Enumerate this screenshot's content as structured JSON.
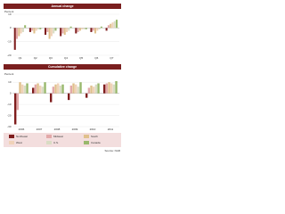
{
  "chart_data": [
    {
      "type": "bar",
      "title": "Annual change",
      "ylabel": "Percent",
      "categories": [
        "Q1",
        "Q2",
        "Q3",
        "Q4",
        "Q5",
        "Q6",
        "Q7"
      ],
      "series": [
        {
          "name": "Northeast",
          "color": "#7f1d1d",
          "values": [
            -16,
            -3,
            -5,
            -6,
            -4,
            -3,
            -2
          ]
        },
        {
          "name": "Midwest",
          "color": "#e3a9a9",
          "values": [
            -8,
            -2,
            -3,
            -4,
            -3,
            -2,
            2
          ]
        },
        {
          "name": "South",
          "color": "#e0c08c",
          "values": [
            -6,
            -4,
            -8,
            -5,
            -2,
            -4,
            3
          ]
        },
        {
          "name": "West",
          "color": "#f0d2b8",
          "values": [
            -4,
            -2,
            -6,
            -3,
            -1,
            -2,
            4
          ]
        },
        {
          "name": "U.S.",
          "color": "#d9dcc4",
          "values": [
            -3,
            -1,
            -4,
            -2,
            -1,
            -1,
            5
          ]
        },
        {
          "name": "Canada",
          "color": "#98b86c",
          "values": [
            2,
            -1,
            -2,
            1,
            -1,
            1,
            6
          ]
        }
      ],
      "ylim": [
        -20,
        10
      ],
      "yticks": [
        -20,
        -10,
        0,
        10
      ],
      "grid": true
    },
    {
      "type": "bar",
      "title": "Cumulative change",
      "ylabel": "Percent",
      "categories": [
        "2006",
        "2007",
        "2008",
        "2009",
        "2010",
        "2011"
      ],
      "series": [
        {
          "color": "#7f1d1d",
          "values": [
            -28,
            5,
            -8,
            -6,
            -4,
            8
          ]
        },
        {
          "color": "#e3a9a9",
          "values": [
            -15,
            8,
            6,
            7,
            5,
            9
          ]
        },
        {
          "color": "#e0c08c",
          "values": [
            10,
            9,
            8,
            9,
            7,
            10
          ]
        },
        {
          "color": "#f0d2b8",
          "values": [
            8,
            7,
            9,
            8,
            6,
            9
          ]
        },
        {
          "color": "#d9dcc4",
          "values": [
            7,
            6,
            7,
            6,
            8,
            8
          ]
        },
        {
          "color": "#98b86c",
          "values": [
            9,
            10,
            8,
            10,
            9,
            11
          ]
        }
      ],
      "ylim": [
        -30,
        15
      ],
      "yticks": [
        -30,
        -20,
        -10,
        0,
        10
      ],
      "grid": true
    }
  ],
  "source": "Source: NAR"
}
